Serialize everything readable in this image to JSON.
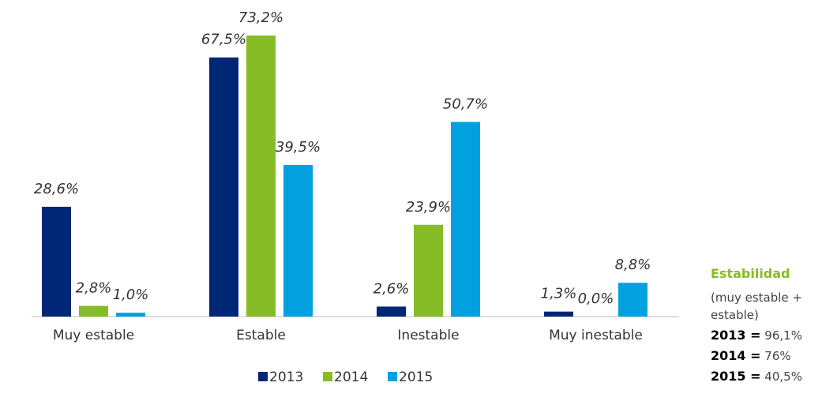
{
  "chart_data": {
    "type": "bar",
    "categories": [
      "Muy estable",
      "Estable",
      "Inestable",
      "Muy inestable"
    ],
    "series": [
      {
        "name": "2013",
        "color": "#002776",
        "values": [
          28.6,
          67.5,
          2.6,
          1.3
        ],
        "value_labels": [
          "28,6%",
          "67,5%",
          "2,6%",
          "1,3%"
        ]
      },
      {
        "name": "2014",
        "color": "#86bc25",
        "values": [
          2.8,
          73.2,
          23.9,
          0.0
        ],
        "value_labels": [
          "2,8%",
          "73,2%",
          "23,9%",
          "0,0%"
        ]
      },
      {
        "name": "2015",
        "color": "#00a1de",
        "values": [
          1.0,
          39.5,
          50.7,
          8.8
        ],
        "value_labels": [
          "1,0%",
          "39,5%",
          "50,7%",
          "8,8%"
        ]
      }
    ],
    "legend": "bottom"
  },
  "side_note": {
    "title": "Estabilidad",
    "subtitle": "(muy estable + estable)",
    "items": [
      {
        "label": "2013 =",
        "value": "96,1%"
      },
      {
        "label": "2014 =",
        "value": "76%"
      },
      {
        "label": "2015 =",
        "value": "40,5%"
      }
    ]
  }
}
